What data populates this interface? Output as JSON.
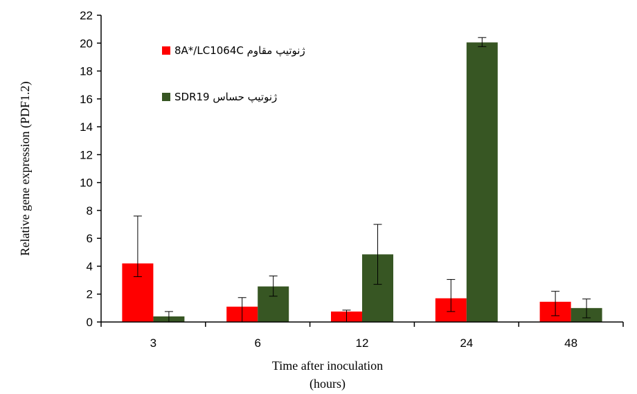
{
  "chart_data": {
    "type": "bar",
    "xlabel_line1": "Time after inoculation",
    "xlabel_line2": "(hours)",
    "ylabel": "Relative gene expression (PDF1.2)",
    "ylim": [
      0,
      22
    ],
    "yticks": [
      "0",
      "2",
      "4",
      "6",
      "8",
      "10",
      "12",
      "14",
      "16",
      "18",
      "20",
      "22"
    ],
    "categories": [
      "3",
      "6",
      "12",
      "24",
      "48"
    ],
    "grid": false,
    "legend_position": "top-left",
    "series": [
      {
        "name": "8A*/LC1064C ژنوتیپ مقاوم",
        "color": "#ff0000",
        "values": [
          4.2,
          1.1,
          0.75,
          1.7,
          1.45
        ],
        "err_low": [
          3.25,
          0.0,
          0.0,
          0.75,
          0.45
        ],
        "err_high": [
          7.6,
          1.75,
          0.85,
          3.05,
          2.2
        ]
      },
      {
        "name": "SDR19 ژنوتیپ حساس",
        "color": "#375623",
        "values": [
          0.4,
          2.55,
          4.85,
          20.05,
          1.0
        ],
        "err_low": [
          0.0,
          1.85,
          2.7,
          19.75,
          0.3
        ],
        "err_high": [
          0.75,
          3.3,
          7.0,
          20.4,
          1.65
        ]
      }
    ]
  }
}
